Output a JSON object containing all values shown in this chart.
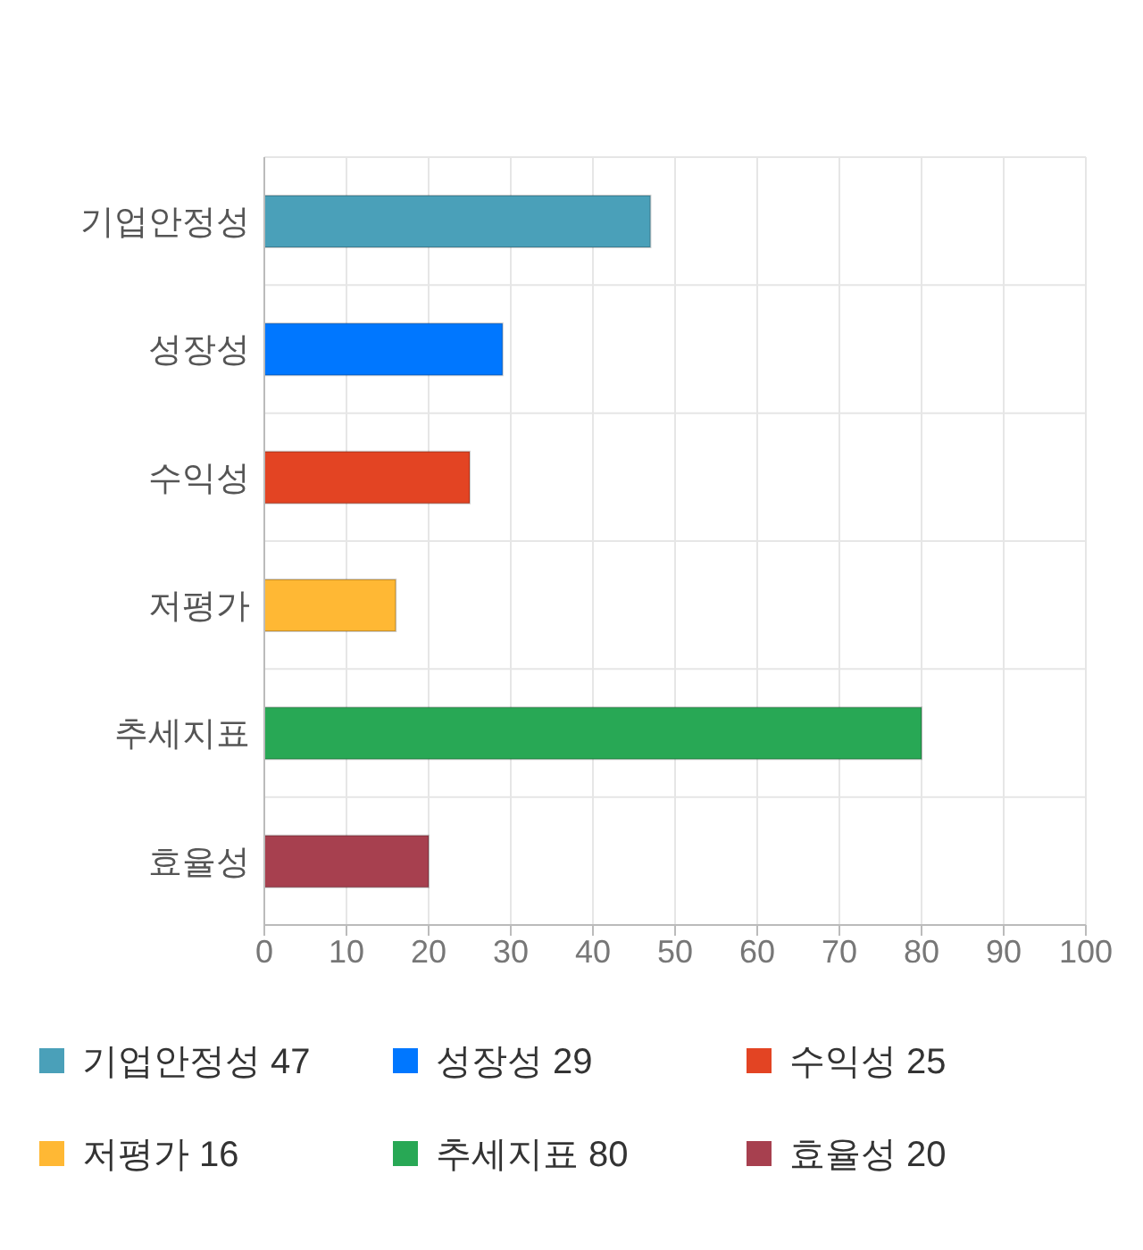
{
  "chart_data": {
    "type": "bar",
    "orientation": "horizontal",
    "stacked": true,
    "categories": [
      "기업안정성",
      "성장성",
      "수익성",
      "저평가",
      "추세지표",
      "효율성"
    ],
    "series": [
      {
        "name": "기업안정성 47",
        "color": "#4aa0b9",
        "values": [
          47,
          null,
          null,
          null,
          null,
          null
        ]
      },
      {
        "name": "성장성 29",
        "color": "#0077ff",
        "values": [
          null,
          29,
          null,
          null,
          null,
          null
        ]
      },
      {
        "name": "수익성 25",
        "color": "#e34423",
        "values": [
          null,
          null,
          25,
          null,
          null,
          null
        ]
      },
      {
        "name": "저평가 16",
        "color": "#ffb834",
        "values": [
          null,
          null,
          null,
          16,
          null,
          null
        ]
      },
      {
        "name": "추세지표 80",
        "color": "#28a855",
        "values": [
          null,
          null,
          null,
          null,
          80,
          null
        ]
      },
      {
        "name": "효율성 20",
        "color": "#a7404f",
        "values": [
          null,
          null,
          null,
          null,
          null,
          20
        ]
      }
    ],
    "xlim": [
      0,
      100
    ],
    "xticks": [
      0,
      10,
      20,
      30,
      40,
      50,
      60,
      70,
      80,
      90,
      100
    ],
    "grid": true,
    "legend": "bottom"
  }
}
